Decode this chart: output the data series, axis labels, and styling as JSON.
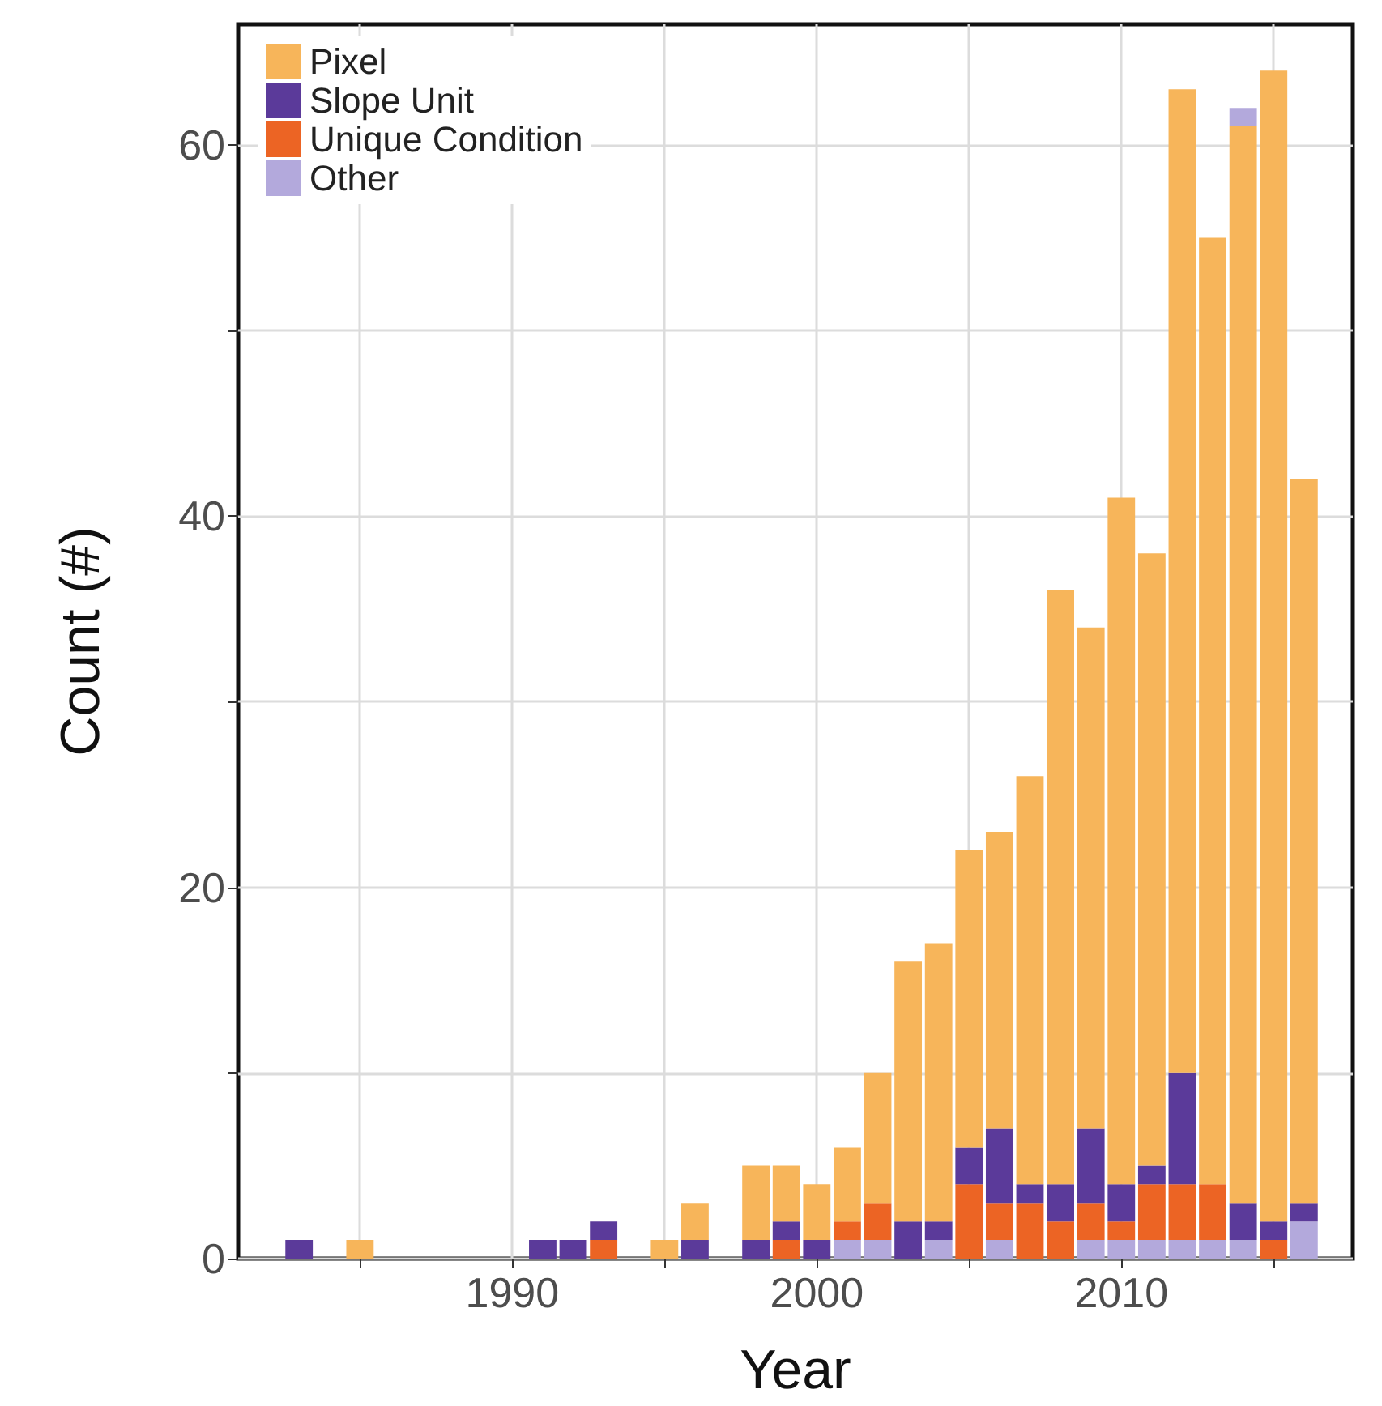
{
  "chart_data": {
    "type": "bar",
    "stacked": true,
    "xlabel": "Year",
    "ylabel": "Count (#)",
    "x": [
      1983,
      1985,
      1991,
      1992,
      1993,
      1995,
      1996,
      1998,
      1999,
      2000,
      2001,
      2002,
      2003,
      2004,
      2005,
      2006,
      2007,
      2008,
      2009,
      2010,
      2011,
      2012,
      2013,
      2014,
      2015,
      2016
    ],
    "series": [
      {
        "name": "Other",
        "color": "#b3a9dc",
        "values": [
          null,
          null,
          null,
          null,
          null,
          null,
          null,
          null,
          null,
          null,
          1,
          1,
          null,
          1,
          null,
          1,
          null,
          null,
          1,
          1,
          1,
          1,
          1,
          1,
          null,
          2
        ]
      },
      {
        "name": "Unique Condition",
        "color": "#ec6424",
        "values": [
          null,
          null,
          null,
          null,
          1,
          null,
          null,
          null,
          1,
          null,
          1,
          2,
          null,
          null,
          4,
          2,
          3,
          2,
          2,
          1,
          3,
          3,
          3,
          null,
          1,
          null
        ]
      },
      {
        "name": "Slope Unit",
        "color": "#5b3a9a",
        "values": [
          1,
          null,
          1,
          1,
          1,
          null,
          1,
          1,
          1,
          1,
          null,
          null,
          2,
          1,
          2,
          4,
          1,
          2,
          4,
          2,
          1,
          6,
          null,
          2,
          1,
          1
        ]
      },
      {
        "name": "Pixel",
        "color": "#f7b55a",
        "values": [
          null,
          1,
          null,
          null,
          null,
          1,
          2,
          4,
          3,
          3,
          4,
          7,
          14,
          15,
          16,
          16,
          22,
          32,
          27,
          37,
          33,
          53,
          51,
          58,
          62,
          39
        ]
      },
      {
        "color": "#b3a9dc",
        "values": [
          null,
          null,
          null,
          null,
          null,
          null,
          null,
          null,
          null,
          null,
          null,
          null,
          null,
          null,
          null,
          null,
          null,
          null,
          null,
          null,
          null,
          null,
          null,
          1,
          null,
          null
        ]
      }
    ],
    "xlim": [
      1981,
      2017.6
    ],
    "xticks": [
      {
        "value": 1985,
        "label": null
      },
      1990,
      {
        "value": 1995,
        "label": null
      },
      2000,
      {
        "value": 2005,
        "label": null
      },
      2010,
      {
        "value": 2015,
        "label": null
      }
    ],
    "ylim": [
      0,
      66.5
    ],
    "yticks": [
      0,
      {
        "value": 10,
        "label": null
      },
      20,
      {
        "value": 30,
        "label": null
      },
      40,
      {
        "value": 50,
        "label": null
      },
      60
    ],
    "grid": true,
    "legend": "top left"
  }
}
